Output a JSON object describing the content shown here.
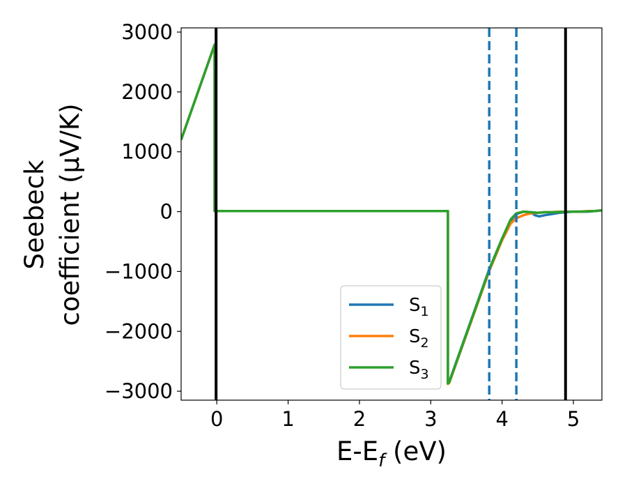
{
  "chart_data": {
    "type": "line",
    "xlabel_main": "E-E",
    "xlabel_sub": "f",
    "xlabel_unit": " (eV)",
    "ylabel_line1": "Seebeck",
    "ylabel_line2": "coefficient  (μV/K)",
    "xlim": [
      -0.5,
      5.4
    ],
    "ylim": [
      -3150,
      3070
    ],
    "x_ticks": [
      0,
      1,
      2,
      3,
      4,
      5
    ],
    "x_tick_labels": [
      "0",
      "1",
      "2",
      "3",
      "4",
      "5"
    ],
    "y_ticks": [
      -3000,
      -2000,
      -1000,
      0,
      1000,
      2000,
      3000
    ],
    "y_tick_labels": [
      "−3000",
      "−2000",
      "−1000",
      "0",
      "1000",
      "2000",
      "3000"
    ],
    "grid": false,
    "legend_position": "lower-right",
    "vertical_lines": [
      {
        "x": -0.01,
        "style": "solid",
        "color": "#000000"
      },
      {
        "x": 4.89,
        "style": "solid",
        "color": "#000000"
      },
      {
        "x": 3.82,
        "style": "dashed",
        "color": "#1f77b4"
      },
      {
        "x": 4.2,
        "style": "dashed",
        "color": "#1f77b4"
      }
    ],
    "series": [
      {
        "name": "S",
        "subscript": "1",
        "color": "#1f77b4",
        "x": [
          -0.5,
          -0.03,
          -0.03,
          3.24,
          3.24,
          3.26,
          3.82,
          4.0,
          4.12,
          4.2,
          4.3,
          4.4,
          4.46,
          4.52,
          4.6,
          4.7,
          4.8,
          4.9,
          5.0,
          5.1,
          5.2,
          5.3,
          5.4
        ],
        "y": [
          1200,
          2790,
          10,
          10,
          -2860,
          -2840,
          -960,
          -450,
          -150,
          -40,
          0,
          -10,
          -60,
          -80,
          -60,
          -40,
          -20,
          -10,
          0,
          0,
          0,
          10,
          20
        ]
      },
      {
        "name": "S",
        "subscript": "2",
        "color": "#ff7f0e",
        "x": [
          -0.5,
          -0.03,
          -0.03,
          3.24,
          3.24,
          3.26,
          3.82,
          4.0,
          4.12,
          4.2,
          4.3,
          4.4,
          4.5,
          4.6,
          4.7,
          4.8,
          4.9,
          5.0,
          5.1,
          5.2,
          5.3,
          5.4
        ],
        "y": [
          1200,
          2790,
          10,
          10,
          -2880,
          -2860,
          -990,
          -480,
          -200,
          -110,
          -60,
          -30,
          -20,
          -10,
          -10,
          0,
          0,
          0,
          0,
          10,
          10,
          20
        ]
      },
      {
        "name": "S",
        "subscript": "3",
        "color": "#2ca02c",
        "x": [
          -0.5,
          -0.03,
          -0.03,
          3.24,
          3.24,
          3.26,
          3.82,
          4.0,
          4.12,
          4.2,
          4.3,
          4.4,
          4.5,
          4.6,
          4.7,
          4.8,
          4.9,
          5.0,
          5.1,
          5.2,
          5.3,
          5.4
        ],
        "y": [
          1200,
          2790,
          10,
          10,
          -2870,
          -2850,
          -970,
          -450,
          -130,
          -30,
          0,
          -10,
          -20,
          -10,
          -10,
          -5,
          0,
          0,
          0,
          5,
          10,
          20
        ]
      }
    ]
  }
}
